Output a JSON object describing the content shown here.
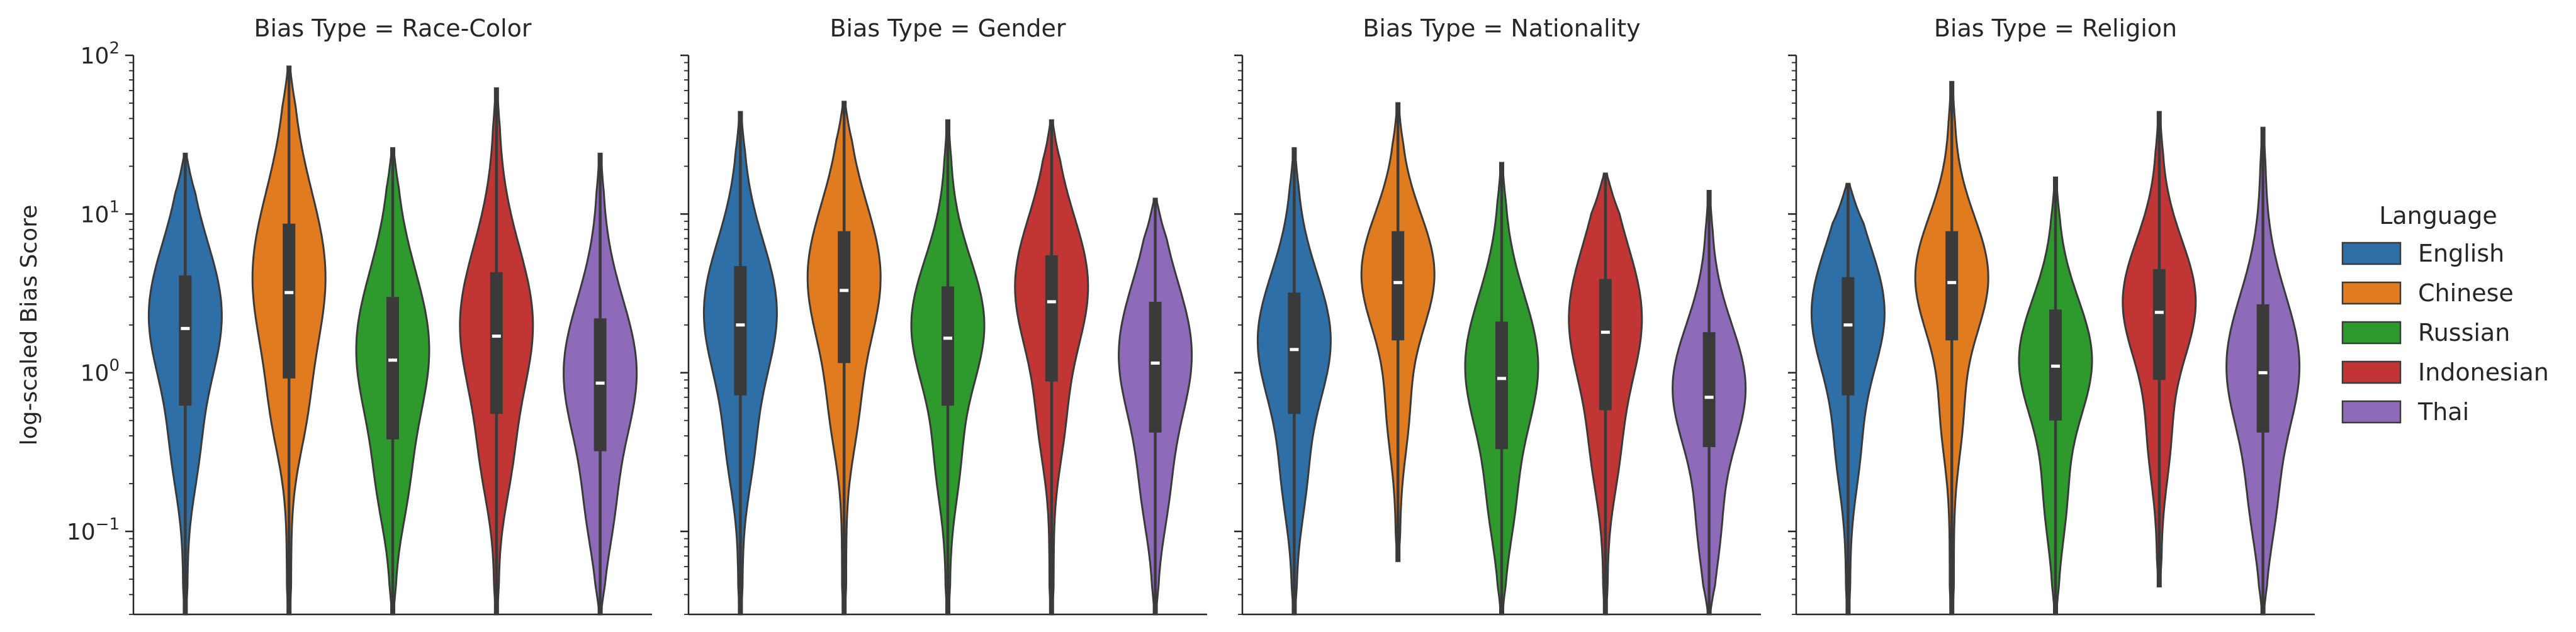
{
  "figure": {
    "ylabel": "log-scaled Bias Score",
    "yticks": [
      {
        "value": 0.1,
        "base": "10",
        "exp": "−1"
      },
      {
        "value": 1,
        "base": "10",
        "exp": "0"
      },
      {
        "value": 10,
        "base": "10",
        "exp": "1"
      },
      {
        "value": 100,
        "base": "10",
        "exp": "2"
      }
    ]
  },
  "legend": {
    "title": "Language",
    "placement": "right",
    "items": [
      {
        "label": "English",
        "color": "#2f6fa8"
      },
      {
        "label": "Chinese",
        "color": "#e07b1f"
      },
      {
        "label": "Russian",
        "color": "#2e9a2e"
      },
      {
        "label": "Indonesian",
        "color": "#c23535"
      },
      {
        "label": "Thai",
        "color": "#8e6bb8"
      }
    ]
  },
  "chart_data": {
    "type": "violin",
    "y_scale": "log",
    "ylabel": "log-scaled Bias Score",
    "ylim": [
      0.03,
      100
    ],
    "grid": false,
    "series_names": [
      "English",
      "Chinese",
      "Russian",
      "Indonesian",
      "Thai"
    ],
    "panels": [
      {
        "title": "Bias Type = Race-Color",
        "violins": [
          {
            "language": "English",
            "min": 0.03,
            "max": 24,
            "q1": 0.62,
            "median": 1.9,
            "q3": 4.1,
            "mode": 2.3
          },
          {
            "language": "Chinese",
            "min": 0.03,
            "max": 85,
            "q1": 0.92,
            "median": 3.2,
            "q3": 8.7,
            "mode": 4.0
          },
          {
            "language": "Russian",
            "min": 0.03,
            "max": 26,
            "q1": 0.38,
            "median": 1.2,
            "q3": 3.0,
            "mode": 1.4
          },
          {
            "language": "Indonesian",
            "min": 0.03,
            "max": 62,
            "q1": 0.55,
            "median": 1.7,
            "q3": 4.3,
            "mode": 2.0
          },
          {
            "language": "Thai",
            "min": 0.03,
            "max": 24,
            "q1": 0.32,
            "median": 0.86,
            "q3": 2.2,
            "mode": 1.0
          }
        ]
      },
      {
        "title": "Bias Type = Gender",
        "violins": [
          {
            "language": "English",
            "min": 0.03,
            "max": 44,
            "q1": 0.72,
            "median": 2.0,
            "q3": 4.7,
            "mode": 2.4
          },
          {
            "language": "Chinese",
            "min": 0.03,
            "max": 51,
            "q1": 1.15,
            "median": 3.3,
            "q3": 7.8,
            "mode": 4.0
          },
          {
            "language": "Russian",
            "min": 0.03,
            "max": 39,
            "q1": 0.62,
            "median": 1.65,
            "q3": 3.5,
            "mode": 2.0
          },
          {
            "language": "Indonesian",
            "min": 0.03,
            "max": 39,
            "q1": 0.88,
            "median": 2.8,
            "q3": 5.5,
            "mode": 3.5
          },
          {
            "language": "Thai",
            "min": 0.03,
            "max": 12.5,
            "q1": 0.42,
            "median": 1.15,
            "q3": 2.8,
            "mode": 1.3
          }
        ]
      },
      {
        "title": "Bias Type = Nationality",
        "violins": [
          {
            "language": "English",
            "min": 0.03,
            "max": 26,
            "q1": 0.55,
            "median": 1.4,
            "q3": 3.2,
            "mode": 1.6
          },
          {
            "language": "Chinese",
            "min": 0.065,
            "max": 50,
            "q1": 1.6,
            "median": 3.7,
            "q3": 7.8,
            "mode": 4.2
          },
          {
            "language": "Russian",
            "min": 0.03,
            "max": 21,
            "q1": 0.33,
            "median": 0.92,
            "q3": 2.1,
            "mode": 1.1
          },
          {
            "language": "Indonesian",
            "min": 0.03,
            "max": 18,
            "q1": 0.58,
            "median": 1.8,
            "q3": 3.9,
            "mode": 2.2
          },
          {
            "language": "Thai",
            "min": 0.03,
            "max": 14,
            "q1": 0.34,
            "median": 0.7,
            "q3": 1.8,
            "mode": 0.8
          }
        ]
      },
      {
        "title": "Bias Type = Religion",
        "violins": [
          {
            "language": "English",
            "min": 0.03,
            "max": 15.5,
            "q1": 0.72,
            "median": 2.0,
            "q3": 4.0,
            "mode": 2.4
          },
          {
            "language": "Chinese",
            "min": 0.03,
            "max": 68,
            "q1": 1.6,
            "median": 3.7,
            "q3": 7.8,
            "mode": 4.0
          },
          {
            "language": "Russian",
            "min": 0.03,
            "max": 17,
            "q1": 0.5,
            "median": 1.1,
            "q3": 2.5,
            "mode": 1.2
          },
          {
            "language": "Indonesian",
            "min": 0.045,
            "max": 44,
            "q1": 0.9,
            "median": 2.4,
            "q3": 4.5,
            "mode": 2.8
          },
          {
            "language": "Thai",
            "min": 0.03,
            "max": 35,
            "q1": 0.42,
            "median": 1.0,
            "q3": 2.7,
            "mode": 1.1
          }
        ]
      }
    ]
  }
}
